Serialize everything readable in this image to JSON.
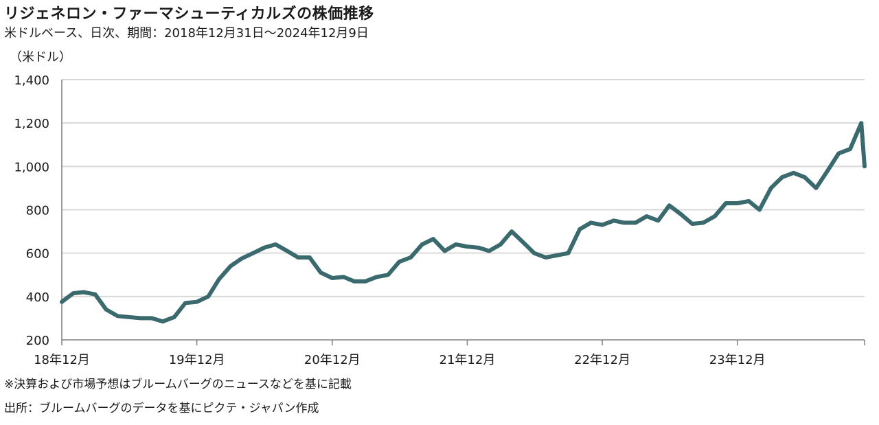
{
  "header": {
    "title": "リジェネロン・ファーマシューティカルズの株価推移",
    "subtitle": "米ドルベース、日次、期間：2018年12月31日～2024年12月9日"
  },
  "footer": {
    "note": "※決算および市場予想はブルームバーグのニュースなどを基に記載",
    "source": "出所：ブルームバーグのデータを基にピクテ・ジャパン作成"
  },
  "chart_data": {
    "type": "line",
    "title": "リジェネロン・ファーマシューティカルズの株価推移",
    "ylabel": "（米ドル）",
    "ylim": [
      200,
      1400
    ],
    "yticks": [
      200,
      400,
      600,
      800,
      1000,
      1200,
      1400
    ],
    "yticks_labels": [
      "200",
      "400",
      "600",
      "800",
      "1,000",
      "1,200",
      "1,400"
    ],
    "xticks": [
      {
        "x": "2018-12-31",
        "label": "18年12月"
      },
      {
        "x": "2019-12-31",
        "label": "19年12月"
      },
      {
        "x": "2020-12-31",
        "label": "20年12月"
      },
      {
        "x": "2021-12-31",
        "label": "21年12月"
      },
      {
        "x": "2022-12-31",
        "label": "22年12月"
      },
      {
        "x": "2023-12-31",
        "label": "23年12月"
      }
    ],
    "xlim": [
      "2018-12-31",
      "2024-12-09"
    ],
    "grid": true,
    "color": "#3a6a6e",
    "series": [
      {
        "name": "",
        "x": [
          "2018-12-31",
          "2019-01-31",
          "2019-02-28",
          "2019-03-31",
          "2019-04-30",
          "2019-05-31",
          "2019-06-30",
          "2019-07-31",
          "2019-08-31",
          "2019-09-30",
          "2019-10-31",
          "2019-11-30",
          "2019-12-31",
          "2020-01-31",
          "2020-02-29",
          "2020-03-31",
          "2020-04-30",
          "2020-05-31",
          "2020-06-30",
          "2020-07-31",
          "2020-08-31",
          "2020-09-30",
          "2020-10-31",
          "2020-11-30",
          "2020-12-31",
          "2021-01-31",
          "2021-02-28",
          "2021-03-31",
          "2021-04-30",
          "2021-05-31",
          "2021-06-30",
          "2021-07-31",
          "2021-08-31",
          "2021-09-30",
          "2021-10-31",
          "2021-11-30",
          "2021-12-31",
          "2022-01-31",
          "2022-02-28",
          "2022-03-31",
          "2022-04-30",
          "2022-05-31",
          "2022-06-30",
          "2022-07-31",
          "2022-08-31",
          "2022-09-30",
          "2022-10-31",
          "2022-11-30",
          "2022-12-31",
          "2023-01-31",
          "2023-02-28",
          "2023-03-31",
          "2023-04-30",
          "2023-05-31",
          "2023-06-30",
          "2023-07-31",
          "2023-08-31",
          "2023-09-30",
          "2023-10-31",
          "2023-11-30",
          "2023-12-31",
          "2024-01-31",
          "2024-02-29",
          "2024-03-31",
          "2024-04-30",
          "2024-05-31",
          "2024-06-30",
          "2024-07-31",
          "2024-08-31",
          "2024-09-30",
          "2024-10-31",
          "2024-11-30",
          "2024-12-09"
        ],
        "values": [
          375,
          415,
          420,
          410,
          340,
          310,
          305,
          300,
          300,
          285,
          305,
          370,
          375,
          400,
          480,
          540,
          575,
          600,
          625,
          640,
          610,
          580,
          580,
          510,
          485,
          490,
          470,
          470,
          490,
          500,
          560,
          580,
          640,
          665,
          610,
          640,
          630,
          625,
          610,
          640,
          700,
          650,
          600,
          580,
          590,
          600,
          710,
          740,
          730,
          750,
          740,
          740,
          770,
          750,
          820,
          780,
          735,
          740,
          770,
          830,
          830,
          840,
          800,
          900,
          950,
          970,
          950,
          900,
          980,
          1060,
          1080,
          1200,
          1000
        ]
      }
    ]
  }
}
